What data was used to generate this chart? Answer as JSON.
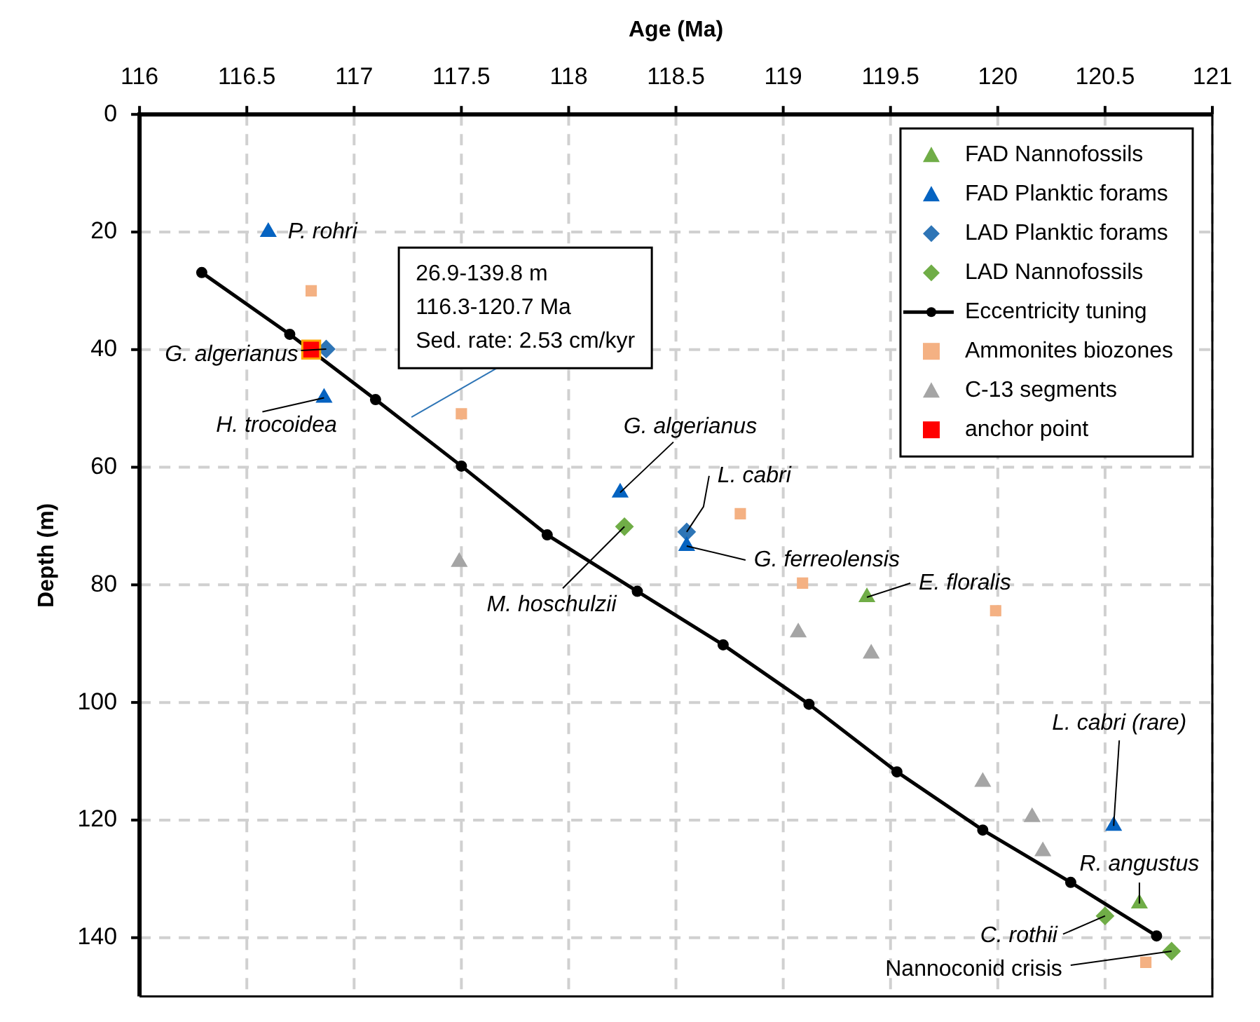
{
  "chart_data": {
    "type": "scatter",
    "xlabel": "Age (Ma)",
    "ylabel": "Depth (m)",
    "xlim": [
      116,
      121
    ],
    "xticks": [
      116,
      116.5,
      117,
      117.5,
      118,
      118.5,
      119,
      119.5,
      120,
      120.5,
      121
    ],
    "ylim": [
      150,
      0
    ],
    "yticks": [
      0,
      20,
      40,
      60,
      80,
      100,
      120,
      140
    ],
    "grid": true,
    "legend": "top right",
    "series": [
      {
        "name": "FAD Nannofossils",
        "marker": "triangle",
        "color": "#70ad47",
        "x": [
          119.39,
          120.66
        ],
        "values": [
          82.1,
          134.2
        ]
      },
      {
        "name": "FAD Planktic forams",
        "marker": "triangle",
        "color": "#0563c1",
        "x": [
          116.6,
          116.86,
          118.24,
          118.55,
          120.54
        ],
        "values": [
          20,
          48.2,
          64.3,
          73.4,
          121
        ]
      },
      {
        "name": "LAD Planktic forams",
        "marker": "diamond",
        "color": "#2e75b6",
        "x": [
          116.87,
          118.55
        ],
        "values": [
          39.9,
          71
        ]
      },
      {
        "name": "LAD Nannofossils",
        "marker": "diamond",
        "color": "#70ad47",
        "x": [
          118.26,
          120.5,
          120.81
        ],
        "values": [
          70.1,
          136.3,
          142.3
        ]
      },
      {
        "name": "Eccentricity tuning",
        "type": "line",
        "marker": "circle",
        "color": "#000000",
        "x": [
          116.29,
          116.7,
          117.1,
          117.5,
          117.9,
          118.32,
          118.72,
          119.12,
          119.53,
          119.93,
          120.34,
          120.74
        ],
        "values": [
          26.9,
          37.4,
          48.5,
          59.8,
          71.5,
          81.1,
          90.2,
          100.3,
          111.8,
          121.7,
          130.6,
          139.7
        ]
      },
      {
        "name": "Ammonites biozones",
        "marker": "square",
        "color": "#f4b183",
        "x": [
          116.8,
          117.5,
          118.8,
          119.09,
          119.99,
          120.69
        ],
        "values": [
          30,
          50.9,
          67.9,
          79.7,
          84.4,
          144.2
        ]
      },
      {
        "name": "C-13 segments",
        "marker": "triangle",
        "color": "#a5a5a5",
        "x": [
          117.49,
          119.07,
          119.41,
          119.93,
          120.16,
          120.21
        ],
        "values": [
          76.1,
          88.1,
          91.7,
          113.5,
          119.5,
          125.3
        ]
      },
      {
        "name": "anchor point",
        "marker": "square",
        "color": "#ff0000",
        "x": [
          116.8
        ],
        "values": [
          40
        ]
      }
    ],
    "annotations": [
      {
        "text": "P. rohri",
        "x": 116.6,
        "y": 20
      },
      {
        "text": "G. algerianus",
        "x": 116.87,
        "y": 39.9
      },
      {
        "text": "H. trocoidea",
        "x": 116.86,
        "y": 48.2
      },
      {
        "text": "G. algerianus",
        "x": 118.24,
        "y": 64.3
      },
      {
        "text": "L. cabri",
        "x": 118.55,
        "y": 71
      },
      {
        "text": "G. ferreolensis",
        "x": 118.55,
        "y": 73.4
      },
      {
        "text": "M. hoschulzii",
        "x": 118.26,
        "y": 70.1
      },
      {
        "text": "E. floralis",
        "x": 119.39,
        "y": 82.1
      },
      {
        "text": "L. cabri (rare)",
        "x": 120.54,
        "y": 121
      },
      {
        "text": "R. angustus",
        "x": 120.66,
        "y": 134.2
      },
      {
        "text": "C. rothii",
        "x": 120.5,
        "y": 136.3
      },
      {
        "text": "Nannoconid crisis",
        "x": 120.81,
        "y": 142.3
      },
      "26.9-139.8 m\n116.3-120.7 Ma\nSed. rate: 2.53 cm/kyr"
    ]
  }
}
